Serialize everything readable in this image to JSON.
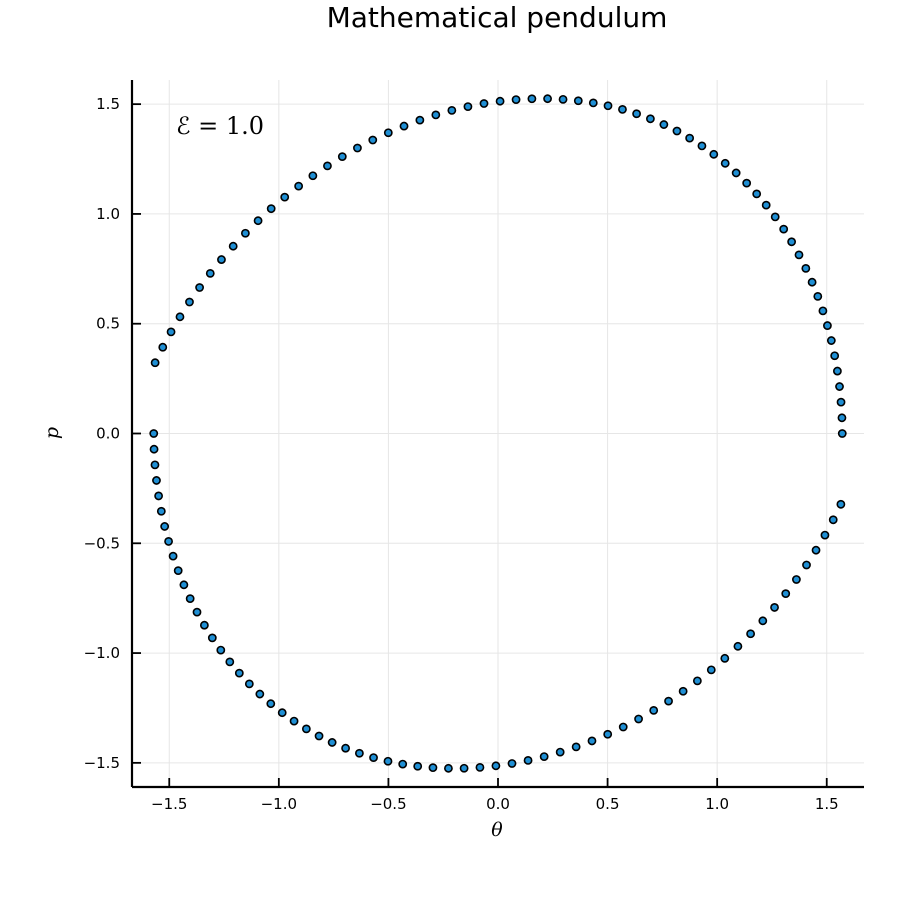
{
  "chart_data": {
    "type": "scatter",
    "title": "Mathematical pendulum",
    "xlabel": "θ",
    "ylabel": "p",
    "xlim": [
      -1.67,
      1.67
    ],
    "ylim": [
      -1.61,
      1.61
    ],
    "xticks": [
      -1.5,
      -1.0,
      -0.5,
      0.0,
      0.5,
      1.0,
      1.5
    ],
    "xtick_labels": [
      "−1.5",
      "−1.0",
      "−0.5",
      "0.0",
      "0.5",
      "1.0",
      "1.5"
    ],
    "yticks": [
      -1.5,
      -1.0,
      -0.5,
      0.0,
      0.5,
      1.0,
      1.5
    ],
    "ytick_labels": [
      "−1.5",
      "−1.0",
      "−0.5",
      "0.0",
      "0.5",
      "1.0",
      "1.5"
    ],
    "grid": true,
    "legend": "none",
    "annotation": {
      "text": "ℰ = 1.0",
      "x": -1.46,
      "y": 1.39
    },
    "marker_color": "#1f8fd4",
    "marker_edge": "#000000",
    "series": [
      {
        "x": [
          1.5708,
          1.5694,
          1.5652,
          1.5583,
          1.5486,
          1.5362,
          1.521,
          1.5031,
          1.4825,
          1.4592,
          1.4332,
          1.4046,
          1.3734,
          1.3397,
          1.3035,
          1.2648,
          1.2237,
          1.1803,
          1.1346,
          1.0867,
          1.0367,
          0.9846,
          0.9305,
          0.8744,
          0.8165,
          0.7568,
          0.6954,
          0.6324,
          0.5679,
          0.502,
          0.4348,
          0.3664,
          0.2968,
          0.2262,
          0.1547,
          0.0824,
          0.0095,
          -0.0639,
          -0.1372,
          -0.2106,
          -0.2837,
          -0.3565,
          -0.4288,
          -0.5005,
          -0.5714,
          -0.6414,
          -0.7104,
          -0.7782,
          -0.8447,
          -0.9097,
          -0.9732,
          -1.0349,
          -1.0947,
          -1.1526,
          -1.2083,
          -1.2618,
          -1.3129,
          -1.3616,
          -1.4077,
          -1.4511,
          -1.4918,
          -1.5296,
          -1.5645,
          -1.5708,
          -1.5694,
          -1.5652,
          -1.5583,
          -1.5486,
          -1.5362,
          -1.521,
          -1.5031,
          -1.4825,
          -1.4592,
          -1.4332,
          -1.4046,
          -1.3734,
          -1.3397,
          -1.3035,
          -1.2648,
          -1.2237,
          -1.1803,
          -1.1346,
          -1.0867,
          -1.0367,
          -0.9846,
          -0.9305,
          -0.8744,
          -0.8165,
          -0.7568,
          -0.6954,
          -0.6324,
          -0.5679,
          -0.502,
          -0.4348,
          -0.3664,
          -0.2968,
          -0.2262,
          -0.1547,
          -0.0824,
          -0.0095,
          0.0639,
          0.1372,
          0.2106,
          0.2837,
          0.3565,
          0.4288,
          0.5005,
          0.5714,
          0.6414,
          0.7104,
          0.7782,
          0.8447,
          0.9097,
          0.9732,
          1.0349,
          1.0947,
          1.1526,
          1.2083,
          1.2618,
          1.3129,
          1.3616,
          1.4077,
          1.4511,
          1.4918,
          1.5296,
          1.5645
        ],
        "y": [
          0.0,
          0.0715,
          0.1428,
          0.2138,
          0.2843,
          0.3542,
          0.4233,
          0.4915,
          0.5586,
          0.6245,
          0.6891,
          0.7521,
          0.8135,
          0.8731,
          0.9308,
          0.9865,
          1.0401,
          1.0914,
          1.1403,
          1.1867,
          1.2305,
          1.2716,
          1.3099,
          1.3453,
          1.3777,
          1.4071,
          1.4333,
          1.4563,
          1.4761,
          1.4926,
          1.5057,
          1.5155,
          1.5219,
          1.5249,
          1.5245,
          1.5207,
          1.5135,
          1.5029,
          1.4889,
          1.4716,
          1.451,
          1.4272,
          1.4001,
          1.3699,
          1.3366,
          1.3002,
          1.261,
          1.2189,
          1.174,
          1.1265,
          1.0765,
          1.024,
          0.9692,
          0.9122,
          0.8531,
          0.7921,
          0.7293,
          0.6648,
          0.5988,
          0.5314,
          0.4627,
          0.393,
          0.3224,
          0.0,
          -0.0715,
          -0.1428,
          -0.2138,
          -0.2843,
          -0.3542,
          -0.4233,
          -0.4915,
          -0.5586,
          -0.6245,
          -0.6891,
          -0.7521,
          -0.8135,
          -0.8731,
          -0.9308,
          -0.9865,
          -1.0401,
          -1.0914,
          -1.1403,
          -1.1867,
          -1.2305,
          -1.2716,
          -1.3099,
          -1.3453,
          -1.3777,
          -1.4071,
          -1.4333,
          -1.4563,
          -1.4761,
          -1.4926,
          -1.5057,
          -1.5155,
          -1.5219,
          -1.5249,
          -1.5245,
          -1.5207,
          -1.5135,
          -1.5029,
          -1.4889,
          -1.4716,
          -1.451,
          -1.4272,
          -1.4001,
          -1.3699,
          -1.3366,
          -1.3002,
          -1.261,
          -1.2189,
          -1.174,
          -1.1265,
          -1.0765,
          -1.024,
          -0.9692,
          -0.9122,
          -0.8531,
          -0.7921,
          -0.7293,
          -0.6648,
          -0.5988,
          -0.5314,
          -0.4627,
          -0.393,
          -0.3224
        ]
      }
    ]
  }
}
